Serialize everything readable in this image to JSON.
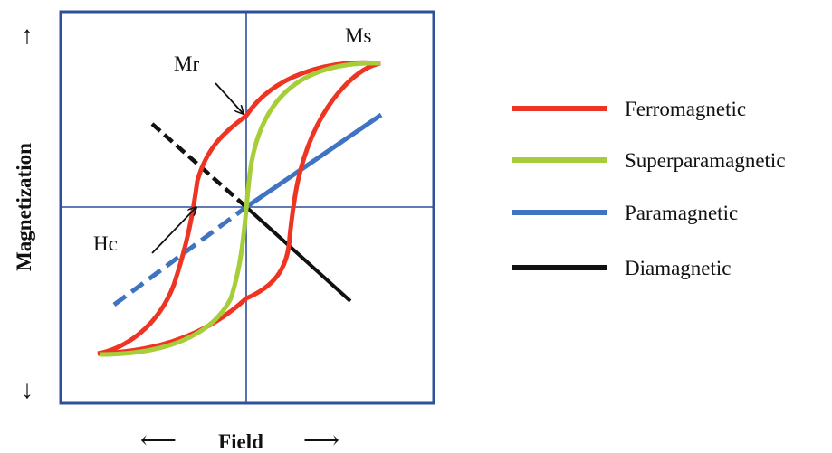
{
  "annotations": {
    "mr": "Mr",
    "ms": "Ms",
    "hc": "Hc"
  },
  "axes": {
    "xlabel": "Field",
    "ylabel": "Magnetization",
    "x_arrow_left": "⟵",
    "x_arrow_right": "⟶",
    "y_arrow_up": "↑",
    "y_arrow_down": "↓"
  },
  "legend": [
    {
      "label": "Ferromagnetic",
      "color": "#ee3524"
    },
    {
      "label": "Superparamagnetic",
      "color": "#a6ce39"
    },
    {
      "label": "Paramagnetic",
      "color": "#3f74c2"
    },
    {
      "label": "Diamagnetic",
      "color": "#111111"
    }
  ],
  "colors": {
    "frame": "#2e4f9a",
    "crosshair": "#2e4f9a"
  }
}
